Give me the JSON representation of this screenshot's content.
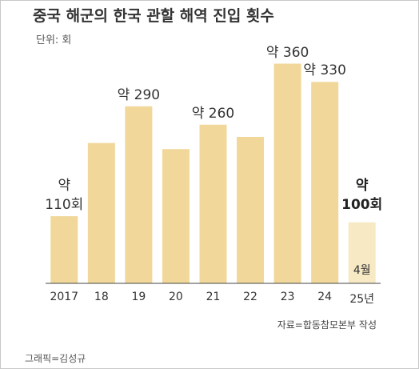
{
  "chart_data": {
    "type": "bar",
    "title": "중국 해군의 한국 관할 해역 진입 횟수",
    "subtitle": "단위: 회",
    "categories": [
      "2017",
      "18",
      "19",
      "20",
      "21",
      "22",
      "23",
      "24",
      "25년"
    ],
    "values": [
      110,
      230,
      290,
      220,
      260,
      240,
      360,
      330,
      100
    ],
    "value_labels": [
      "약\n110회",
      null,
      "약 290",
      null,
      "약 260",
      null,
      "약 360",
      "약 330",
      "약\n100회"
    ],
    "colors": [
      "#f1d89a",
      "#f1d89a",
      "#f1d89a",
      "#f1d89a",
      "#f1d89a",
      "#f1d89a",
      "#f1d89a",
      "#f1d89a",
      "#f6e9c4"
    ],
    "ylim": [
      0,
      400
    ],
    "annotations": {
      "partial": "4월",
      "source": "자료=합동참모본부 작성",
      "credit": "그래픽=김성규"
    }
  }
}
